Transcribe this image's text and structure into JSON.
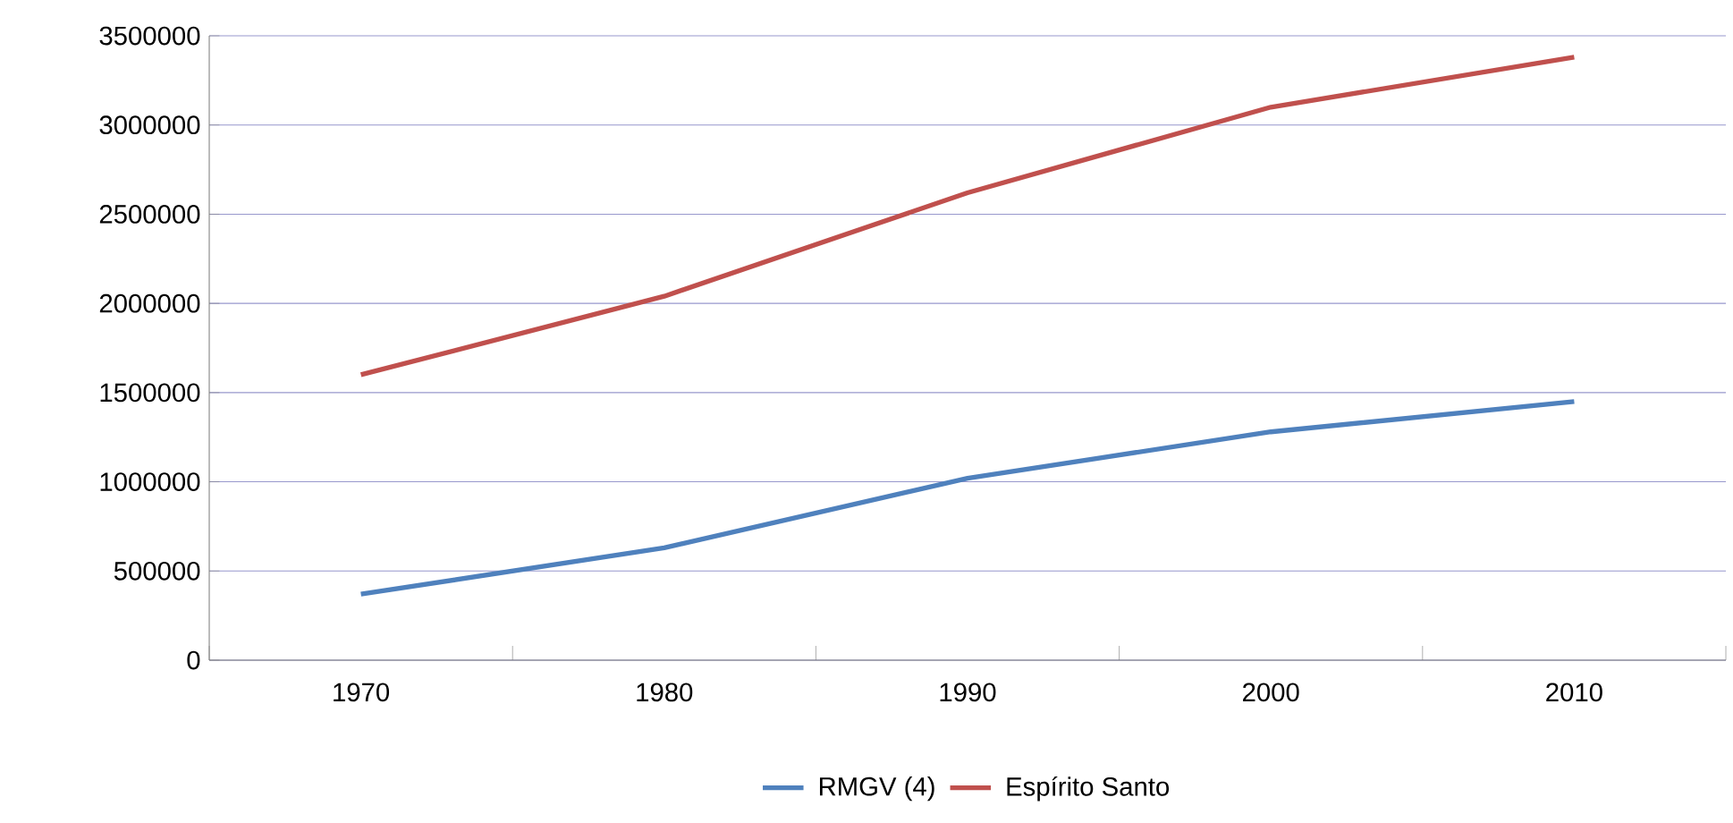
{
  "chart_data": {
    "type": "line",
    "categories": [
      "1970",
      "1980",
      "1990",
      "2000",
      "2010"
    ],
    "series": [
      {
        "name": "RMGV (4)",
        "color": "#4f81bd",
        "values": [
          370000,
          630000,
          1020000,
          1280000,
          1450000
        ]
      },
      {
        "name": "Espírito Santo",
        "color": "#c0504d",
        "values": [
          1600000,
          2040000,
          2620000,
          3100000,
          3380000
        ]
      }
    ],
    "ylim": [
      0,
      3500000
    ],
    "yticks": [
      0,
      500000,
      1000000,
      1500000,
      2000000,
      2500000,
      3000000,
      3500000
    ],
    "grid": "y",
    "legend": "bottom",
    "marker": "none",
    "line_style": "solid"
  }
}
